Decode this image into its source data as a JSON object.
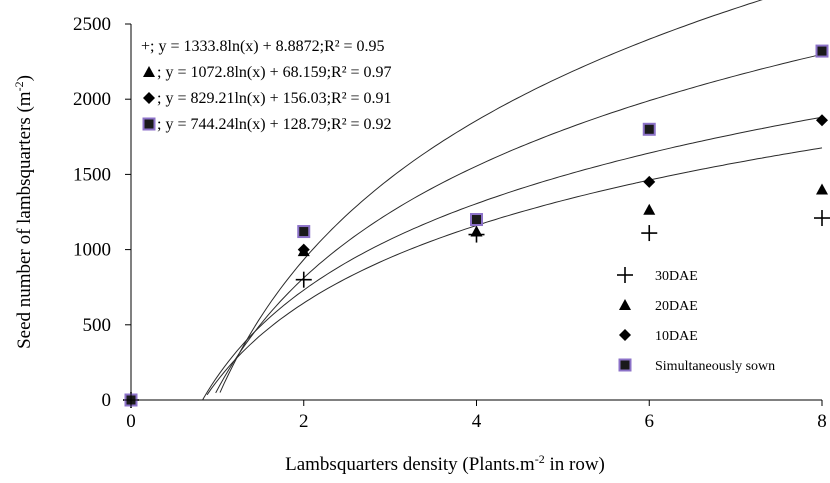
{
  "chart_data": {
    "type": "scatter",
    "xlabel": "Lambsquarters density (Plants.m",
    "xlabel_sup": "-2",
    "xlabel_tail": " in row)",
    "ylabel": "Seed number of lambsquarters (m",
    "ylabel_sup": "-2",
    "ylabel_tail": ")",
    "xlim": [
      0,
      8
    ],
    "ylim": [
      0,
      2500
    ],
    "x_ticks": [
      "0",
      "2",
      "4",
      "6",
      "8"
    ],
    "y_ticks": [
      "0",
      "500",
      "1000",
      "1500",
      "2000",
      "2500"
    ],
    "grid": false,
    "legend_position": "bottom-right",
    "x": [
      0,
      2,
      4,
      6,
      8
    ],
    "series": [
      {
        "name": "30DAE",
        "marker": "plus",
        "values": [
          0,
          800,
          1100,
          1110,
          1210
        ],
        "equation": "+;  y = 1333.8ln(x) + 8.8872;R² = 0.95",
        "fit": {
          "a": 1333.8,
          "b": 8.8872
        }
      },
      {
        "name": "20DAE",
        "marker": "triangle",
        "values": [
          0,
          990,
          1120,
          1265,
          1400
        ],
        "equation": "; y = 1072.8ln(x) + 68.159;R² = 0.97",
        "fit": {
          "a": 1072.8,
          "b": 68.159
        }
      },
      {
        "name": "10DAE",
        "marker": "diamond",
        "values": [
          0,
          1000,
          1200,
          1450,
          1860
        ],
        "equation": ";  y = 829.21ln(x) + 156.03;R² = 0.91",
        "fit": {
          "a": 829.21,
          "b": 156.03
        }
      },
      {
        "name": "Simultaneously sown",
        "marker": "square",
        "values": [
          0,
          1120,
          1200,
          1800,
          2320
        ],
        "equation": ";  y = 744.24ln(x) + 128.79;R² = 0.92",
        "fit": {
          "a": 744.24,
          "b": 128.79
        }
      }
    ],
    "colors": {
      "axis": "#000000",
      "marker": "#000000",
      "square_fill": "#1a1a1a",
      "square_edge": "#8c72c8",
      "curve": "#2a2a2a"
    }
  }
}
